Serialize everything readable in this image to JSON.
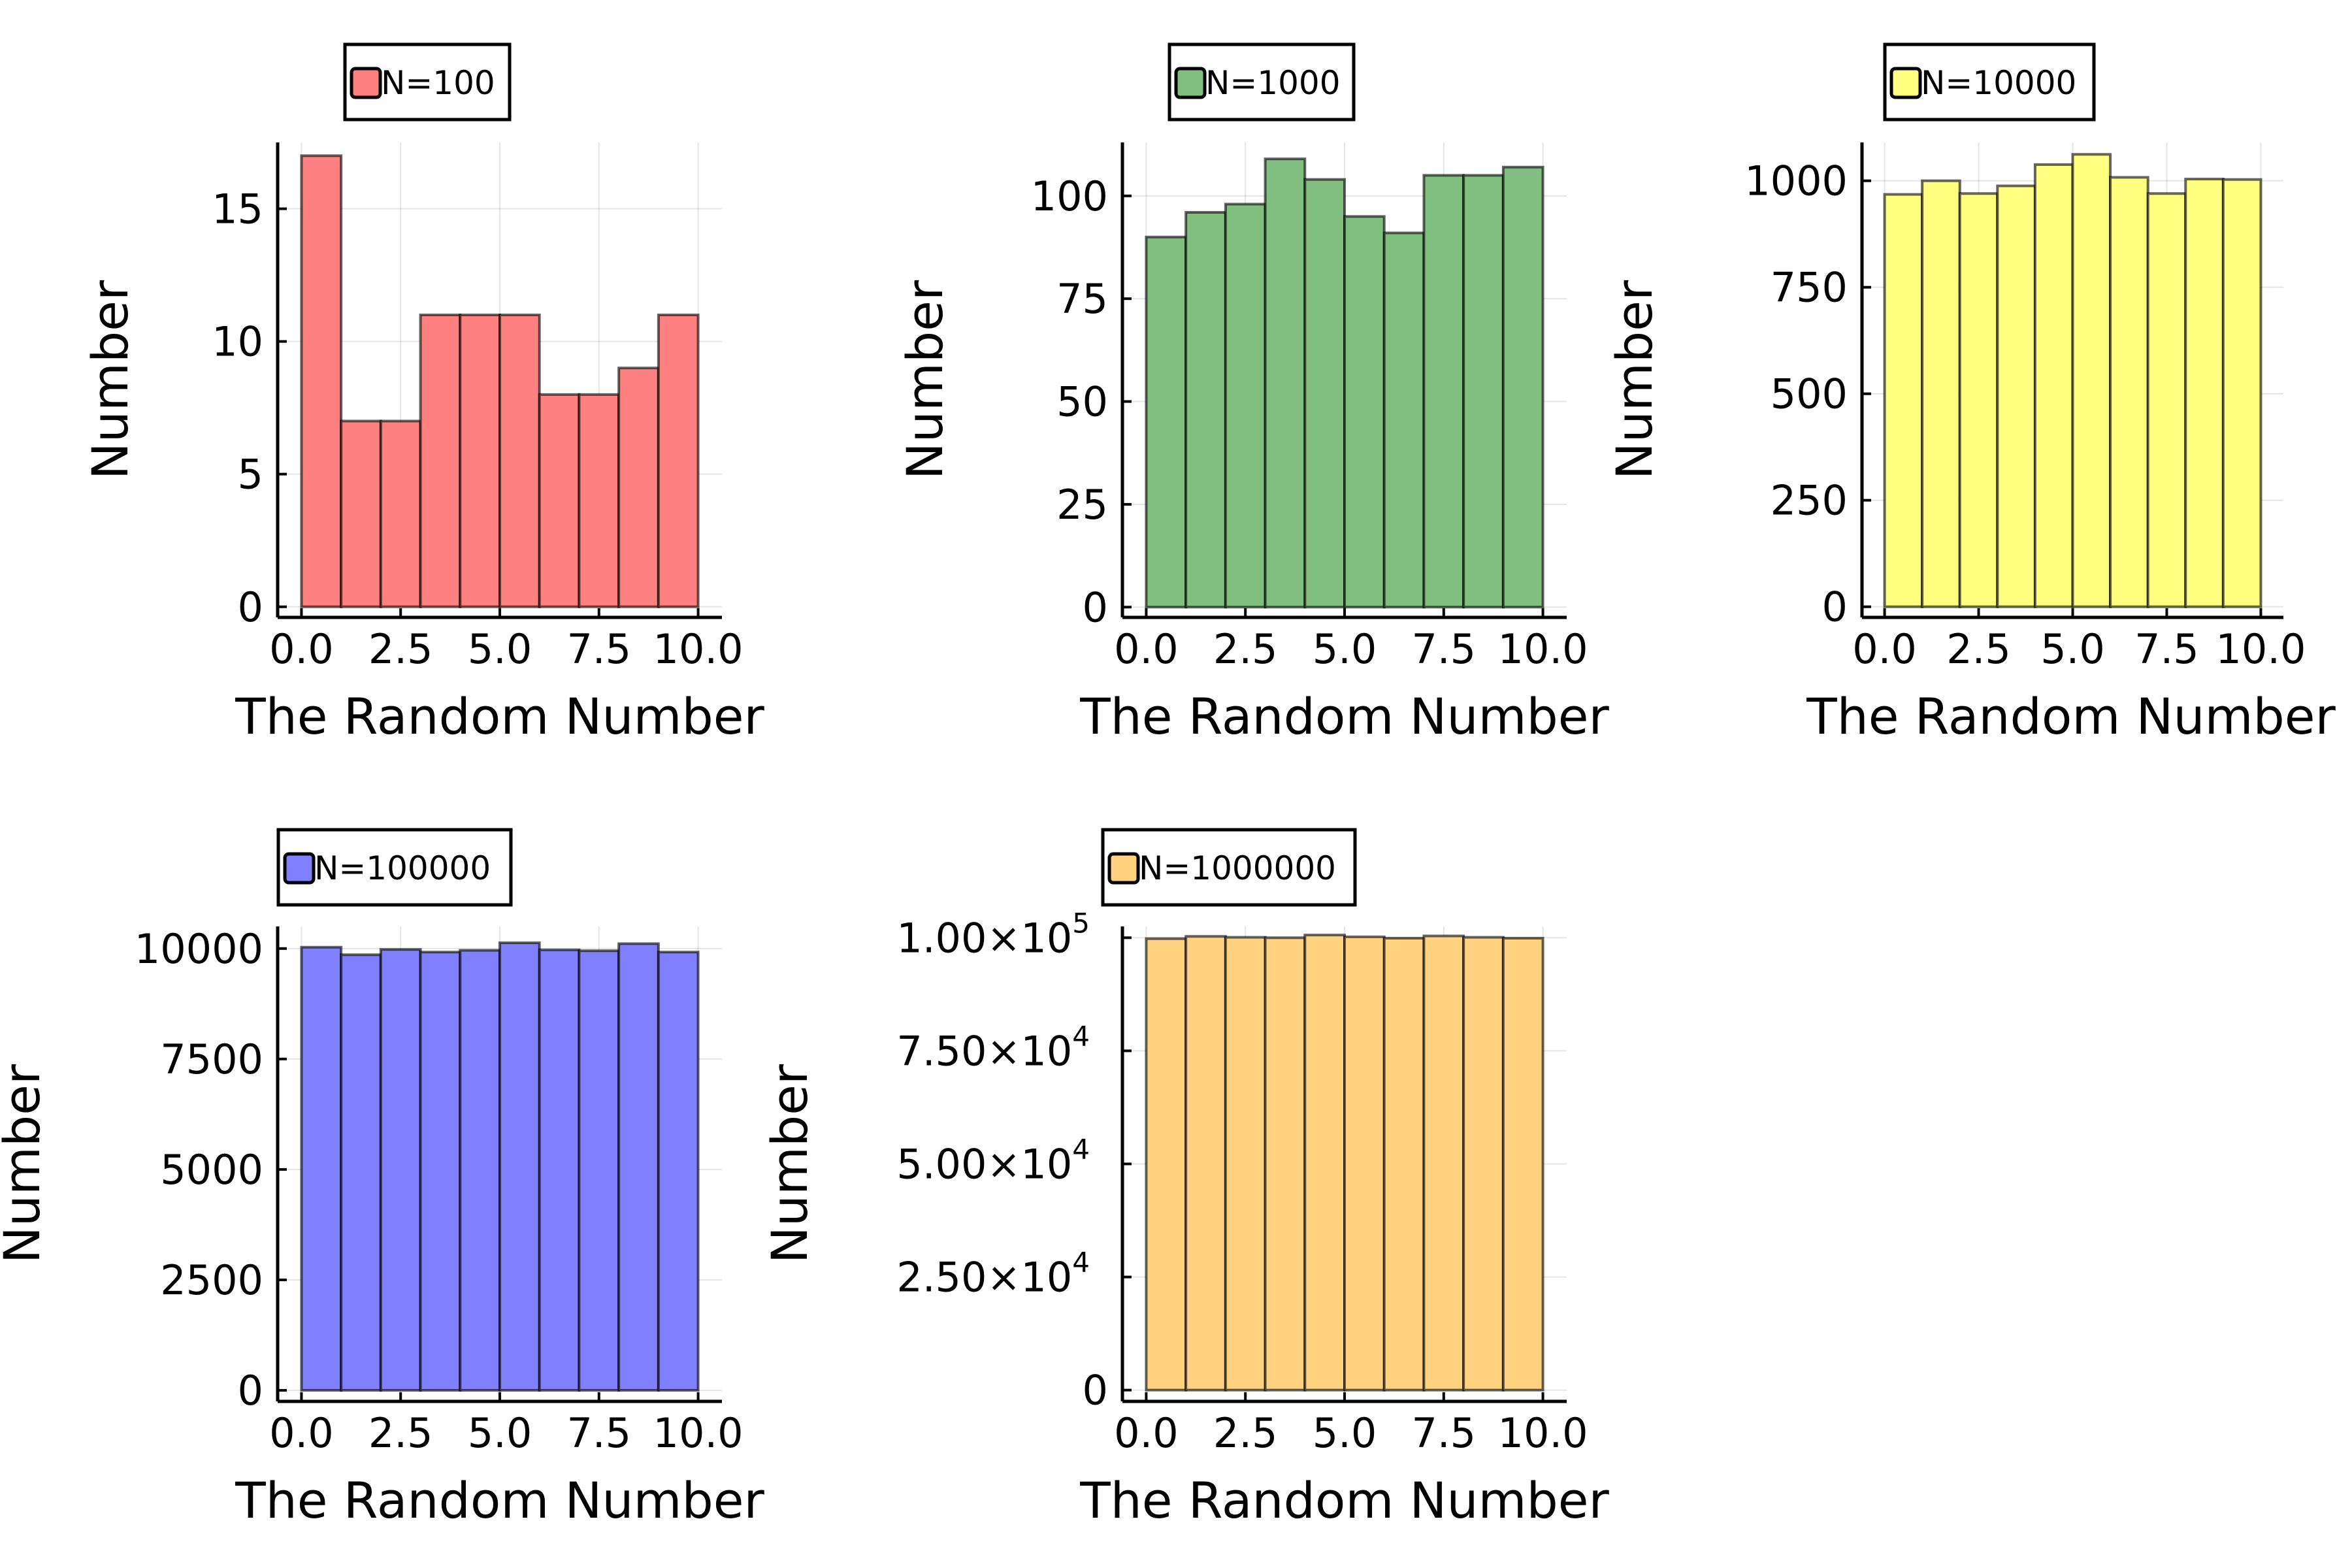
{
  "chart_data": [
    {
      "type": "bar",
      "legend": {
        "label": "N=100",
        "placement": "top"
      },
      "color": "#ff8080",
      "xlabel": "The Random Number",
      "ylabel": "Number",
      "bin_edges": [
        0,
        1,
        2,
        3,
        4,
        5,
        6,
        7,
        8,
        9,
        10
      ],
      "values": [
        17,
        7,
        7,
        11,
        11,
        11,
        8,
        8,
        9,
        11
      ],
      "xlim": [
        -0.6,
        10.6
      ],
      "ylim": [
        -0.4,
        17.5
      ],
      "xticks": [
        {
          "value": 0,
          "label": "0.0"
        },
        {
          "value": 2.5,
          "label": "2.5"
        },
        {
          "value": 5,
          "label": "5.0"
        },
        {
          "value": 7.5,
          "label": "7.5"
        },
        {
          "value": 10,
          "label": "10.0"
        }
      ],
      "yticks": [
        {
          "value": 0,
          "label": "0"
        },
        {
          "value": 5,
          "label": "5"
        },
        {
          "value": 10,
          "label": "10"
        },
        {
          "value": 15,
          "label": "15"
        }
      ],
      "grid": true
    },
    {
      "type": "bar",
      "legend": {
        "label": "N=1000",
        "placement": "top"
      },
      "color": "#80bf80",
      "xlabel": "The Random Number",
      "ylabel": "Number",
      "bin_edges": [
        0,
        1,
        2,
        3,
        4,
        5,
        6,
        7,
        8,
        9,
        10
      ],
      "values": [
        90,
        96,
        98,
        109,
        104,
        95,
        91,
        105,
        105,
        107
      ],
      "xlim": [
        -0.6,
        10.6
      ],
      "ylim": [
        -2.5,
        113
      ],
      "xticks": [
        {
          "value": 0,
          "label": "0.0"
        },
        {
          "value": 2.5,
          "label": "2.5"
        },
        {
          "value": 5,
          "label": "5.0"
        },
        {
          "value": 7.5,
          "label": "7.5"
        },
        {
          "value": 10,
          "label": "10.0"
        }
      ],
      "yticks": [
        {
          "value": 0,
          "label": "0"
        },
        {
          "value": 25,
          "label": "25"
        },
        {
          "value": 50,
          "label": "50"
        },
        {
          "value": 75,
          "label": "75"
        },
        {
          "value": 100,
          "label": "100"
        }
      ],
      "grid": true
    },
    {
      "type": "bar",
      "legend": {
        "label": "N=10000",
        "placement": "top"
      },
      "color": "#ffff80",
      "xlabel": "The Random Number",
      "ylabel": "Number",
      "bin_edges": [
        0,
        1,
        2,
        3,
        4,
        5,
        6,
        7,
        8,
        9,
        10
      ],
      "values": [
        968,
        1000,
        970,
        988,
        1038,
        1062,
        1008,
        970,
        1004,
        1003
      ],
      "xlim": [
        -0.6,
        10.6
      ],
      "ylim": [
        -25,
        1090
      ],
      "xticks": [
        {
          "value": 0,
          "label": "0.0"
        },
        {
          "value": 2.5,
          "label": "2.5"
        },
        {
          "value": 5,
          "label": "5.0"
        },
        {
          "value": 7.5,
          "label": "7.5"
        },
        {
          "value": 10,
          "label": "10.0"
        }
      ],
      "yticks": [
        {
          "value": 0,
          "label": "0"
        },
        {
          "value": 250,
          "label": "250"
        },
        {
          "value": 500,
          "label": "500"
        },
        {
          "value": 750,
          "label": "750"
        },
        {
          "value": 1000,
          "label": "1000"
        }
      ],
      "grid": true
    },
    {
      "type": "bar",
      "legend": {
        "label": "N=100000",
        "placement": "top"
      },
      "color": "#8080ff",
      "xlabel": "The Random Number",
      "ylabel": "Number",
      "bin_edges": [
        0,
        1,
        2,
        3,
        4,
        5,
        6,
        7,
        8,
        9,
        10
      ],
      "values": [
        10030,
        9860,
        9980,
        9920,
        9960,
        10130,
        9970,
        9950,
        10110,
        9920
      ],
      "xlim": [
        -0.6,
        10.6
      ],
      "ylim": [
        -250,
        10500
      ],
      "xticks": [
        {
          "value": 0,
          "label": "0.0"
        },
        {
          "value": 2.5,
          "label": "2.5"
        },
        {
          "value": 5,
          "label": "5.0"
        },
        {
          "value": 7.5,
          "label": "7.5"
        },
        {
          "value": 10,
          "label": "10.0"
        }
      ],
      "yticks": [
        {
          "value": 0,
          "label": "0"
        },
        {
          "value": 2500,
          "label": "2500"
        },
        {
          "value": 5000,
          "label": "5000"
        },
        {
          "value": 7500,
          "label": "7500"
        },
        {
          "value": 10000,
          "label": "10000"
        }
      ],
      "grid": true
    },
    {
      "type": "bar",
      "legend": {
        "label": "N=1000000",
        "placement": "top"
      },
      "color": "#ffd280",
      "xlabel": "The Random Number",
      "ylabel": "Number",
      "bin_edges": [
        0,
        1,
        2,
        3,
        4,
        5,
        6,
        7,
        8,
        9,
        10
      ],
      "values": [
        99800,
        100300,
        100100,
        100000,
        100600,
        100200,
        99900,
        100400,
        100100,
        99900
      ],
      "xlim": [
        -0.6,
        10.6
      ],
      "ylim": [
        -2500,
        102500
      ],
      "xticks": [
        {
          "value": 0,
          "label": "0.0"
        },
        {
          "value": 2.5,
          "label": "2.5"
        },
        {
          "value": 5,
          "label": "5.0"
        },
        {
          "value": 7.5,
          "label": "7.5"
        },
        {
          "value": 10,
          "label": "10.0"
        }
      ],
      "yticks": [
        {
          "value": 0,
          "label": "0"
        },
        {
          "value": 25000,
          "label": "2.50×10",
          "exp": "4"
        },
        {
          "value": 50000,
          "label": "5.00×10",
          "exp": "4"
        },
        {
          "value": 75000,
          "label": "7.50×10",
          "exp": "4"
        },
        {
          "value": 100000,
          "label": "1.00×10",
          "exp": "5"
        }
      ],
      "grid": true
    }
  ]
}
